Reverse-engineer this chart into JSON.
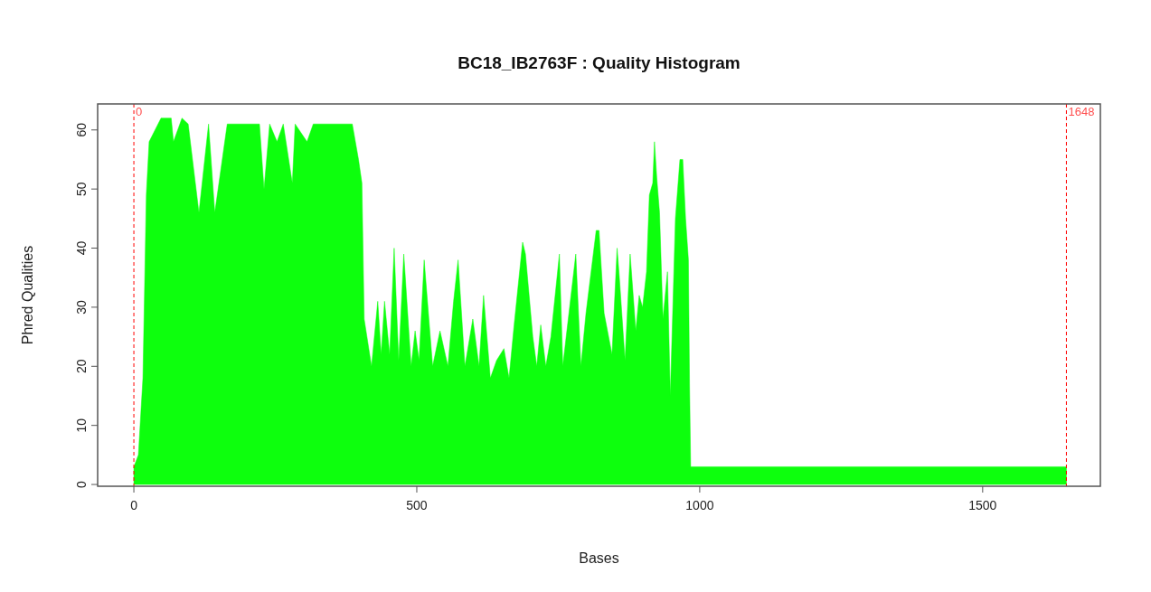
{
  "chart_data": {
    "type": "area",
    "title": "BC18_IB2763F : Quality Histogram",
    "xlabel": "Bases",
    "ylabel": "Phred Qualities",
    "xlim": [
      -64,
      1708
    ],
    "xticks": [
      0,
      500,
      1000,
      1500
    ],
    "ylim": [
      -0.3,
      64.4
    ],
    "yticks": [
      0,
      10,
      20,
      30,
      40,
      50,
      60
    ],
    "grid": false,
    "series": [
      {
        "color": "#0dff0d",
        "x": [
          0,
          8,
          16,
          22,
          27,
          48,
          66,
          70,
          85,
          96,
          115,
          132,
          143,
          165,
          222,
          230,
          240,
          253,
          264,
          280,
          285,
          306,
          317,
          386,
          397,
          403,
          407,
          420,
          431,
          437,
          443,
          452,
          460,
          468,
          477,
          490,
          497,
          504,
          513,
          528,
          541,
          555,
          565,
          573,
          585,
          599,
          610,
          618,
          630,
          641,
          654,
          663,
          672,
          687,
          692,
          705,
          712,
          719,
          728,
          737,
          752,
          758,
          764,
          781,
          790,
          799,
          817,
          822,
          831,
          845,
          854,
          858,
          868,
          877,
          887,
          893,
          899,
          906,
          911,
          917,
          920,
          924,
          929,
          935,
          943,
          948,
          957,
          965,
          970,
          975,
          980,
          982,
          984,
          1648
        ],
        "values": [
          3,
          5,
          18,
          49,
          58,
          62,
          62,
          58,
          62,
          61,
          46,
          61,
          46,
          61,
          61,
          50,
          61,
          58,
          61,
          51,
          61,
          58,
          61,
          61,
          55,
          51,
          28,
          20,
          31,
          22,
          31,
          22,
          40,
          21,
          39,
          20,
          26,
          21,
          38,
          20,
          26,
          20,
          31,
          38,
          20,
          28,
          20,
          32,
          18,
          21,
          23,
          18,
          27,
          41,
          39,
          25,
          20,
          27,
          20,
          25,
          39,
          20,
          25,
          39,
          20,
          29,
          43,
          43,
          29,
          22,
          40,
          35,
          21,
          39,
          26,
          32,
          30,
          36,
          49,
          51,
          58,
          52,
          46,
          28,
          36,
          15,
          45,
          55,
          55,
          45,
          38,
          17,
          3,
          3
        ]
      }
    ],
    "ref_lines": [
      {
        "axis": "x",
        "value": 0,
        "label": "0",
        "color": "#ff0000",
        "line_style": "dashed"
      },
      {
        "axis": "x",
        "value": 1648,
        "label": "1648",
        "color": "#ff0000",
        "line_style": "dashed"
      }
    ]
  }
}
